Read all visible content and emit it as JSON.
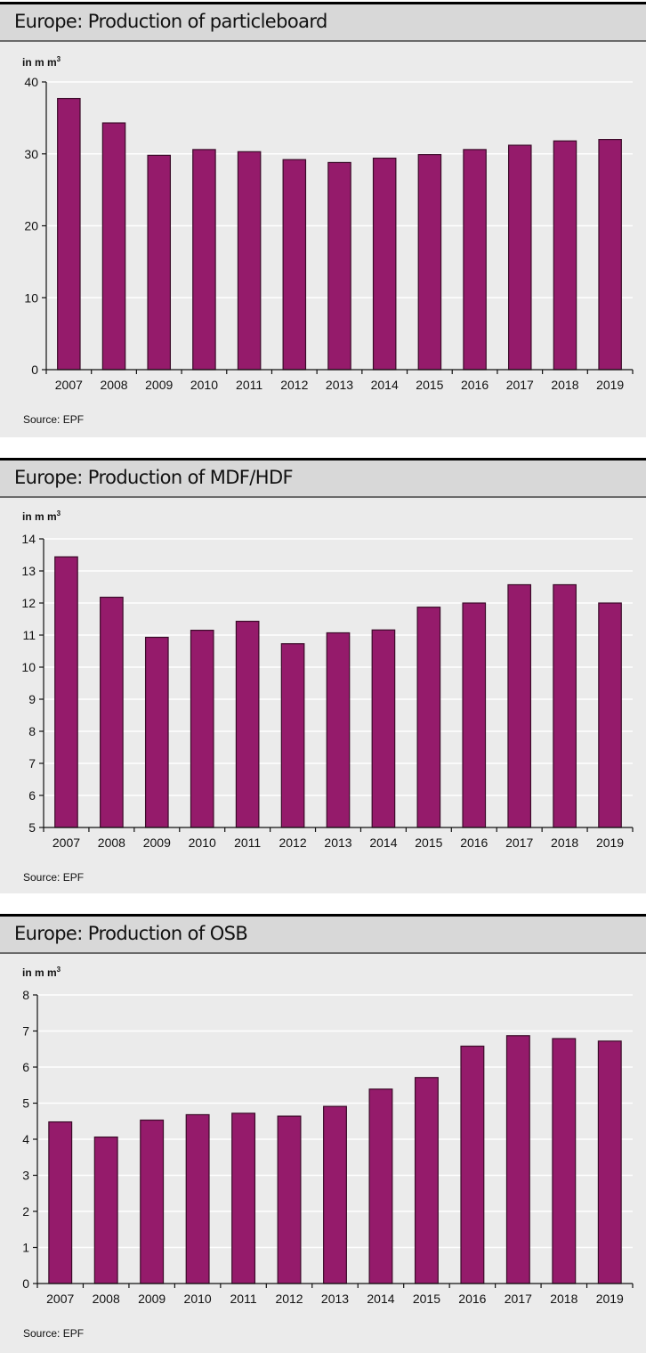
{
  "colors": {
    "bar_fill": "#951b6b",
    "bar_stroke": "#3b0b29",
    "grid": "#ffffff",
    "axis": "#111111"
  },
  "chart_data": [
    {
      "type": "bar",
      "title": "Europe: Production of particleboard",
      "unit_label": "in m m",
      "unit_sup": "3",
      "source": "Source: EPF",
      "xlabel": "",
      "ylabel": "in m m³",
      "categories": [
        "2007",
        "2008",
        "2009",
        "2010",
        "2011",
        "2012",
        "2013",
        "2014",
        "2015",
        "2016",
        "2017",
        "2018",
        "2019"
      ],
      "values": [
        37.7,
        34.3,
        29.8,
        30.6,
        30.3,
        29.2,
        28.8,
        29.4,
        29.9,
        30.6,
        31.2,
        31.8,
        32.0
      ],
      "ylim": [
        0,
        40
      ],
      "yticks": [
        0,
        10,
        20,
        30,
        40
      ],
      "grid": true,
      "legend": "none"
    },
    {
      "type": "bar",
      "title": "Europe: Production of MDF/HDF",
      "unit_label": "in m m",
      "unit_sup": "3",
      "source": "Source: EPF",
      "xlabel": "",
      "ylabel": "in m m³",
      "categories": [
        "2007",
        "2008",
        "2009",
        "2010",
        "2011",
        "2012",
        "2013",
        "2014",
        "2015",
        "2016",
        "2017",
        "2018",
        "2019"
      ],
      "values": [
        13.44,
        12.18,
        10.93,
        11.15,
        11.43,
        10.73,
        11.07,
        11.16,
        11.87,
        12.0,
        12.57,
        12.57,
        12.0
      ],
      "ylim": [
        5,
        14
      ],
      "yticks": [
        5,
        6,
        7,
        8,
        9,
        10,
        11,
        12,
        13,
        14
      ],
      "grid": true,
      "legend": "none"
    },
    {
      "type": "bar",
      "title": "Europe: Production of OSB",
      "unit_label": "in m m",
      "unit_sup": "3",
      "source": "Source: EPF",
      "xlabel": "",
      "ylabel": "in m m³",
      "categories": [
        "2007",
        "2008",
        "2009",
        "2010",
        "2011",
        "2012",
        "2013",
        "2014",
        "2015",
        "2016",
        "2017",
        "2018",
        "2019"
      ],
      "values": [
        4.48,
        4.06,
        4.53,
        4.68,
        4.72,
        4.64,
        4.91,
        5.39,
        5.71,
        6.58,
        6.87,
        6.79,
        6.72
      ],
      "ylim": [
        0,
        8
      ],
      "yticks": [
        0,
        1,
        2,
        3,
        4,
        5,
        6,
        7,
        8
      ],
      "grid": true,
      "legend": "none"
    }
  ]
}
